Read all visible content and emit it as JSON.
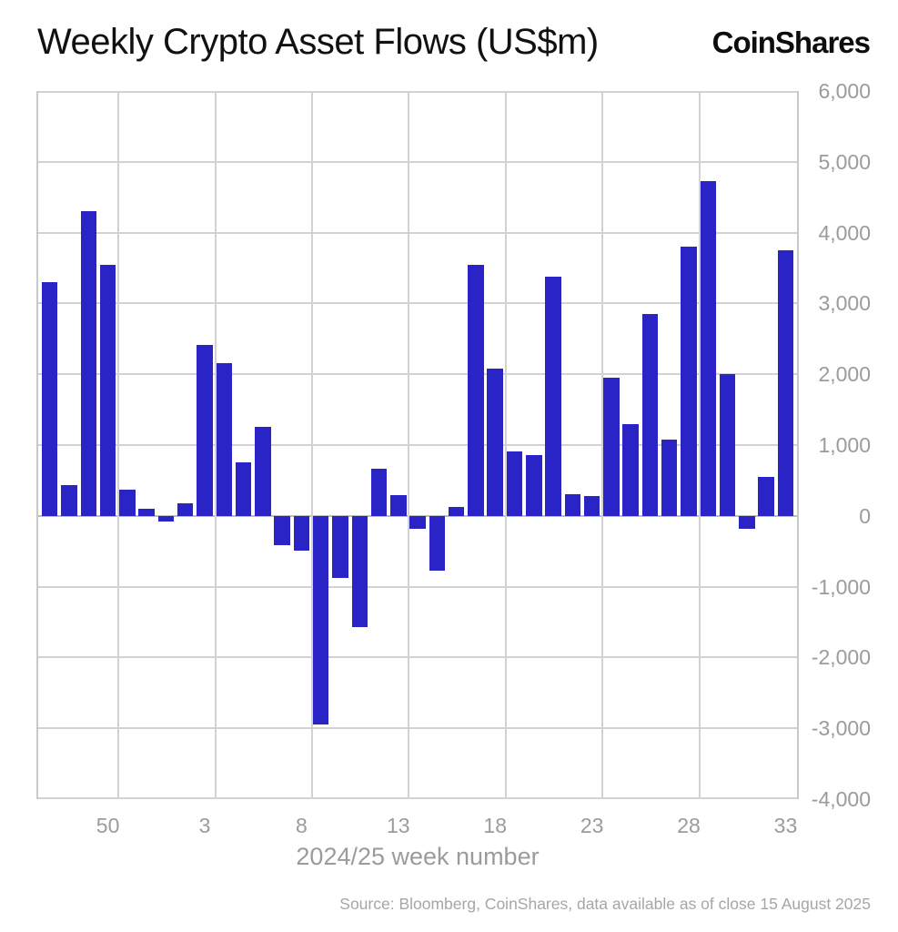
{
  "title": "Weekly Crypto Asset Flows (US$m)",
  "logo": "CoinShares",
  "source": "Source: Bloomberg, CoinShares, data available as of close 15 August 2025",
  "chart_data": {
    "type": "bar",
    "title": "Weekly Crypto Asset Flows (US$m)",
    "xlabel": "2024/25 week number",
    "ylabel": "",
    "x": [
      47,
      48,
      49,
      50,
      51,
      52,
      1,
      2,
      3,
      4,
      5,
      6,
      7,
      8,
      9,
      10,
      11,
      12,
      13,
      14,
      15,
      16,
      17,
      18,
      19,
      20,
      21,
      22,
      23,
      24,
      25,
      26,
      27,
      28,
      29,
      30,
      31,
      32,
      33
    ],
    "values": [
      3300,
      440,
      4300,
      3550,
      370,
      100,
      -80,
      180,
      2420,
      2160,
      760,
      1260,
      -410,
      -490,
      -2950,
      -880,
      -1570,
      660,
      290,
      -180,
      -780,
      120,
      3540,
      2080,
      910,
      860,
      3380,
      310,
      280,
      1950,
      1300,
      2850,
      1080,
      3800,
      4730,
      2000,
      -180,
      550,
      3750
    ],
    "ylim": [
      -4000,
      6000
    ],
    "yticks": [
      6000,
      5000,
      4000,
      3000,
      2000,
      1000,
      0,
      -1000,
      -2000,
      -3000,
      -4000
    ],
    "ytick_labels": [
      "6,000",
      "5,000",
      "4,000",
      "3,000",
      "2,000",
      "1,000",
      "0",
      "-1,000",
      "-2,000",
      "-3,000",
      "-4,000"
    ],
    "xticks": [
      50,
      3,
      8,
      13,
      18,
      23,
      28,
      33
    ],
    "xtick_labels": [
      "50",
      "3",
      "8",
      "13",
      "18",
      "23",
      "28",
      "33"
    ],
    "grid": true,
    "legend": "none",
    "bar_color": "#2a23c6",
    "grid_color": "#d2d2d2",
    "axis_label_color": "#9b9b9b",
    "title_color": "#111111"
  }
}
